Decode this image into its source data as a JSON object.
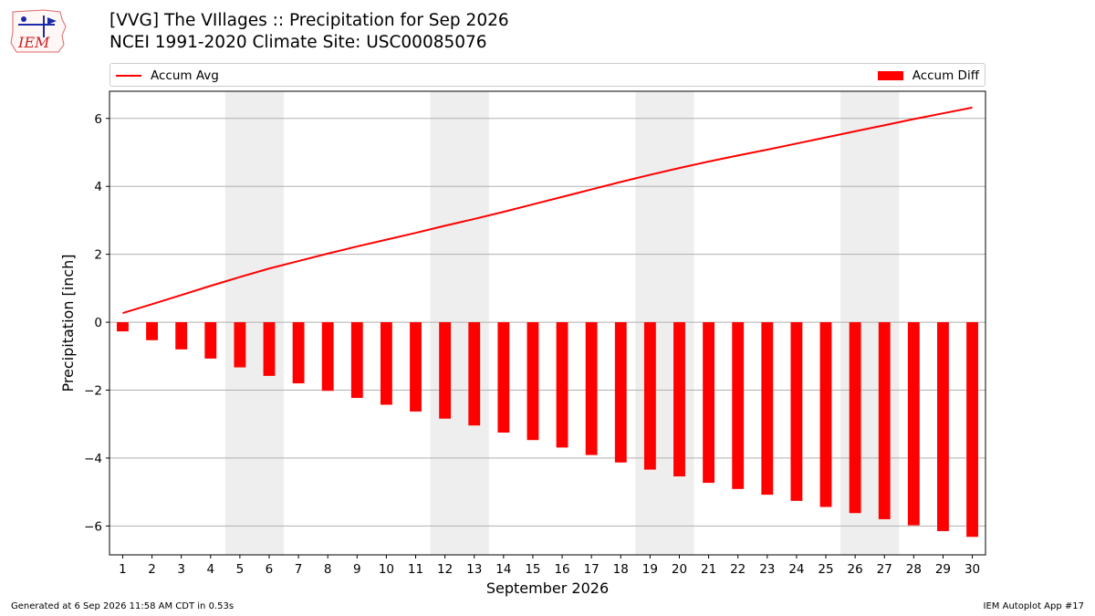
{
  "header": {
    "title_line1": "[VVG] The VIllages :: Precipitation for Sep 2026",
    "title_line2": "NCEI 1991-2020 Climate Site: USC00085076"
  },
  "logo": {
    "text": "IEM",
    "icon": "iem-logo-icon"
  },
  "footer": {
    "generated": "Generated at 6 Sep 2026 11:58 AM CDT in 0.53s",
    "app": "IEM Autoplot App #17"
  },
  "colors": {
    "series": "#ff0000",
    "weekend_band": "#eeeeee",
    "grid": "#b0b0b0"
  },
  "chart_data": {
    "type": "bar",
    "title": "[VVG] The VIllages :: Precipitation for Sep 2026",
    "subtitle": "NCEI 1991-2020 Climate Site: USC00085076",
    "xlabel": "September 2026",
    "ylabel": "Precipitation [inch]",
    "ylim": [
      -6.85,
      6.8
    ],
    "yticks": [
      -6,
      -4,
      -2,
      0,
      2,
      4,
      6
    ],
    "ytick_labels": [
      "−6",
      "−4",
      "−2",
      "0",
      "2",
      "4",
      "6"
    ],
    "grid": "horizontal",
    "legend_placement": "top, above plot",
    "x": [
      1,
      2,
      3,
      4,
      5,
      6,
      7,
      8,
      9,
      10,
      11,
      12,
      13,
      14,
      15,
      16,
      17,
      18,
      19,
      20,
      21,
      22,
      23,
      24,
      25,
      26,
      27,
      28,
      29,
      30
    ],
    "shaded_days": [
      [
        5,
        6
      ],
      [
        12,
        13
      ],
      [
        19,
        20
      ],
      [
        26,
        27
      ]
    ],
    "series": [
      {
        "name": "Accum Avg",
        "type": "line",
        "values": [
          0.27,
          0.53,
          0.8,
          1.07,
          1.33,
          1.58,
          1.8,
          2.02,
          2.23,
          2.43,
          2.63,
          2.84,
          3.04,
          3.25,
          3.47,
          3.69,
          3.91,
          4.13,
          4.34,
          4.54,
          4.73,
          4.91,
          5.08,
          5.26,
          5.44,
          5.62,
          5.8,
          5.98,
          6.15,
          6.32
        ]
      },
      {
        "name": "Accum Diff",
        "type": "bar",
        "values": [
          -0.27,
          -0.53,
          -0.8,
          -1.07,
          -1.33,
          -1.58,
          -1.8,
          -2.02,
          -2.23,
          -2.43,
          -2.63,
          -2.84,
          -3.04,
          -3.25,
          -3.47,
          -3.69,
          -3.91,
          -4.13,
          -4.34,
          -4.54,
          -4.73,
          -4.91,
          -5.08,
          -5.26,
          -5.44,
          -5.62,
          -5.8,
          -5.98,
          -6.15,
          -6.32
        ]
      }
    ]
  }
}
